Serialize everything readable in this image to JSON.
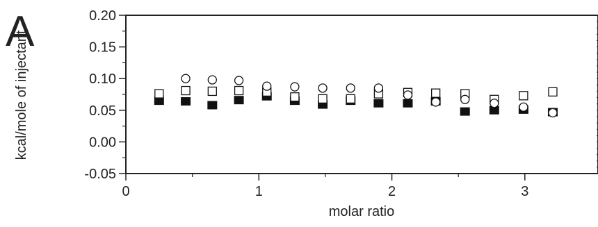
{
  "figure": {
    "panel_label": "A"
  },
  "chart_data": {
    "type": "scatter",
    "xlabel": "molar ratio",
    "ylabel": "kcal/mole of injectant",
    "xlim": [
      0,
      3.55
    ],
    "ylim": [
      -0.05,
      0.2
    ],
    "x_ticks": [
      0,
      1,
      2,
      3
    ],
    "x_tick_labels": [
      "0",
      "1",
      "2",
      "3"
    ],
    "y_ticks": [
      -0.05,
      0.0,
      0.05,
      0.1,
      0.15,
      0.2
    ],
    "y_tick_labels": [
      "-0.05",
      "0.00",
      "0.05",
      "0.10",
      "0.15",
      "0.20"
    ],
    "grid": false,
    "legend": "none",
    "series": [
      {
        "marker": "filled-square",
        "color": "#111111",
        "x": [
          0.25,
          0.45,
          0.65,
          0.85,
          1.06,
          1.27,
          1.48,
          1.69,
          1.9,
          2.12,
          2.33,
          2.55,
          2.77,
          2.99,
          3.21
        ],
        "y": [
          0.065,
          0.064,
          0.058,
          0.066,
          0.072,
          0.065,
          0.059,
          0.065,
          0.061,
          0.061,
          0.064,
          0.048,
          0.05,
          0.051,
          0.047
        ]
      },
      {
        "marker": "open-square",
        "color": "#111111",
        "x": [
          0.25,
          0.45,
          0.65,
          0.85,
          1.06,
          1.27,
          1.48,
          1.69,
          1.9,
          2.12,
          2.33,
          2.55,
          2.77,
          2.99,
          3.21
        ],
        "y": [
          0.076,
          0.081,
          0.08,
          0.081,
          0.079,
          0.071,
          0.068,
          0.068,
          0.076,
          0.078,
          0.077,
          0.076,
          0.067,
          0.073,
          0.079
        ]
      },
      {
        "marker": "open-circle",
        "color": "#111111",
        "x": [
          0.45,
          0.65,
          0.85,
          1.06,
          1.27,
          1.48,
          1.69,
          1.9,
          2.12,
          2.33,
          2.55,
          2.77,
          2.99,
          3.21
        ],
        "y": [
          0.1,
          0.098,
          0.097,
          0.088,
          0.087,
          0.085,
          0.085,
          0.085,
          0.074,
          0.063,
          0.067,
          0.061,
          0.055,
          0.046
        ]
      }
    ]
  }
}
